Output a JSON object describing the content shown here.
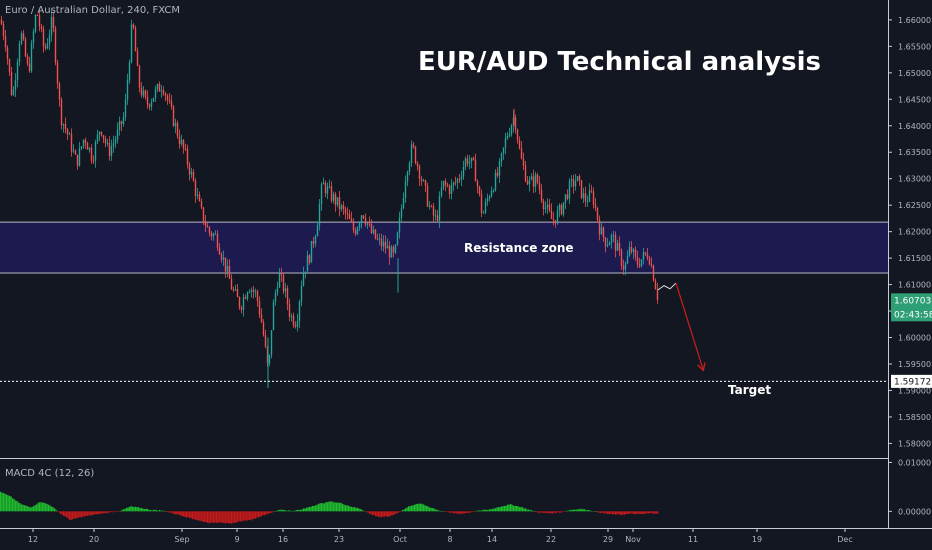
{
  "header": {
    "symbol_label": "Euro / Australian Dollar, 240, FXCM"
  },
  "annotations": {
    "title": "EUR/AUD Technical analysis",
    "resistance_label": "Resistance zone",
    "target_label": "Target"
  },
  "price_tags": {
    "current_price": "1.60703",
    "countdown": "02:43:58",
    "target_price": "1.59172"
  },
  "indicator": {
    "label": "MACD 4C (12, 26)",
    "ticks": [
      "0.01000",
      "0.00000"
    ]
  },
  "colors": {
    "background": "#131722",
    "up": "#26a69a",
    "down": "#ef5350",
    "zone_fill": "#1c1a4e",
    "macd_up": "#1fbe2f",
    "macd_down": "#c81a1a",
    "price_tag": "#2e9e74",
    "target_arrow": "#c11d1d"
  },
  "chart_data": {
    "type": "candlestick",
    "y_ticks": [
      "1.66000",
      "1.65500",
      "1.65000",
      "1.64500",
      "1.64000",
      "1.63500",
      "1.63000",
      "1.62500",
      "1.62000",
      "1.61500",
      "1.61000",
      "1.60500",
      "1.60000",
      "1.59500",
      "1.59000",
      "1.58500",
      "1.58000"
    ],
    "y_range": [
      1.578,
      1.663
    ],
    "x_ticks": [
      "12",
      "20",
      "Sep",
      "9",
      "16",
      "23",
      "Oct",
      "8",
      "14",
      "22",
      "29",
      "Nov",
      "11",
      "19",
      "Dec"
    ],
    "resistance_zone": [
      1.6122,
      1.6218
    ],
    "target_level": 1.59172,
    "last_price": 1.60703,
    "price_path": [
      [
        0,
        1.66
      ],
      [
        5,
        1.656
      ],
      [
        12,
        1.645
      ],
      [
        20,
        1.658
      ],
      [
        28,
        1.65
      ],
      [
        36,
        1.662
      ],
      [
        44,
        1.654
      ],
      [
        52,
        1.66
      ],
      [
        60,
        1.642
      ],
      [
        68,
        1.638
      ],
      [
        76,
        1.633
      ],
      [
        84,
        1.638
      ],
      [
        92,
        1.634
      ],
      [
        100,
        1.64
      ],
      [
        108,
        1.635
      ],
      [
        116,
        1.638
      ],
      [
        124,
        1.642
      ],
      [
        132,
        1.66
      ],
      [
        138,
        1.648
      ],
      [
        146,
        1.644
      ],
      [
        154,
        1.646
      ],
      [
        162,
        1.648
      ],
      [
        170,
        1.643
      ],
      [
        178,
        1.638
      ],
      [
        184,
        1.635
      ],
      [
        192,
        1.63
      ],
      [
        200,
        1.624
      ],
      [
        208,
        1.62
      ],
      [
        216,
        1.619
      ],
      [
        224,
        1.614
      ],
      [
        232,
        1.609
      ],
      [
        240,
        1.606
      ],
      [
        248,
        1.61
      ],
      [
        256,
        1.608
      ],
      [
        262,
        1.602
      ],
      [
        268,
        1.593
      ],
      [
        272,
        1.605
      ],
      [
        278,
        1.612
      ],
      [
        284,
        1.609
      ],
      [
        290,
        1.604
      ],
      [
        296,
        1.603
      ],
      [
        302,
        1.612
      ],
      [
        310,
        1.616
      ],
      [
        316,
        1.621
      ],
      [
        322,
        1.629
      ],
      [
        330,
        1.627
      ],
      [
        338,
        1.625
      ],
      [
        346,
        1.623
      ],
      [
        354,
        1.62
      ],
      [
        362,
        1.624
      ],
      [
        370,
        1.62
      ],
      [
        378,
        1.618
      ],
      [
        386,
        1.617
      ],
      [
        394,
        1.615
      ],
      [
        400,
        1.623
      ],
      [
        406,
        1.632
      ],
      [
        412,
        1.636
      ],
      [
        418,
        1.632
      ],
      [
        424,
        1.628
      ],
      [
        430,
        1.624
      ],
      [
        436,
        1.622
      ],
      [
        442,
        1.629
      ],
      [
        450,
        1.628
      ],
      [
        458,
        1.63
      ],
      [
        466,
        1.634
      ],
      [
        474,
        1.632
      ],
      [
        482,
        1.623
      ],
      [
        490,
        1.628
      ],
      [
        498,
        1.631
      ],
      [
        506,
        1.638
      ],
      [
        514,
        1.642
      ],
      [
        520,
        1.634
      ],
      [
        528,
        1.629
      ],
      [
        536,
        1.63
      ],
      [
        544,
        1.625
      ],
      [
        552,
        1.622
      ],
      [
        560,
        1.624
      ],
      [
        568,
        1.628
      ],
      [
        576,
        1.63
      ],
      [
        584,
        1.626
      ],
      [
        592,
        1.627
      ],
      [
        600,
        1.62
      ],
      [
        606,
        1.618
      ],
      [
        612,
        1.619
      ],
      [
        618,
        1.616
      ],
      [
        624,
        1.613
      ],
      [
        630,
        1.617
      ],
      [
        636,
        1.614
      ],
      [
        642,
        1.615
      ],
      [
        648,
        1.616
      ],
      [
        654,
        1.611
      ],
      [
        658,
        1.607
      ]
    ],
    "macd_path": [
      [
        0,
        0.004
      ],
      [
        10,
        0.003
      ],
      [
        20,
        0.0015
      ],
      [
        30,
        0.0008
      ],
      [
        40,
        0.002
      ],
      [
        50,
        0.0012
      ],
      [
        60,
        -0.0005
      ],
      [
        70,
        -0.0018
      ],
      [
        80,
        -0.0012
      ],
      [
        90,
        -0.0008
      ],
      [
        100,
        -0.0005
      ],
      [
        110,
        -0.0002
      ],
      [
        120,
        0.0001
      ],
      [
        130,
        0.001
      ],
      [
        140,
        0.0007
      ],
      [
        150,
        0.0003
      ],
      [
        160,
        0.0002
      ],
      [
        170,
        -0.0003
      ],
      [
        180,
        -0.0008
      ],
      [
        190,
        -0.0014
      ],
      [
        200,
        -0.002
      ],
      [
        210,
        -0.0024
      ],
      [
        220,
        -0.0022
      ],
      [
        230,
        -0.0026
      ],
      [
        240,
        -0.002
      ],
      [
        250,
        -0.0018
      ],
      [
        260,
        -0.001
      ],
      [
        270,
        -0.0003
      ],
      [
        280,
        0.0004
      ],
      [
        290,
        0.0001
      ],
      [
        300,
        0.0003
      ],
      [
        310,
        0.001
      ],
      [
        320,
        0.0016
      ],
      [
        330,
        0.002
      ],
      [
        340,
        0.0017
      ],
      [
        350,
        0.001
      ],
      [
        360,
        0.0005
      ],
      [
        370,
        -0.0006
      ],
      [
        380,
        -0.0012
      ],
      [
        390,
        -0.001
      ],
      [
        400,
        0.0
      ],
      [
        410,
        0.0012
      ],
      [
        420,
        0.0016
      ],
      [
        430,
        0.0008
      ],
      [
        440,
        0.0001
      ],
      [
        450,
        -0.0003
      ],
      [
        460,
        -0.0005
      ],
      [
        470,
        -0.0002
      ],
      [
        480,
        0.0002
      ],
      [
        490,
        0.0004
      ],
      [
        500,
        0.001
      ],
      [
        510,
        0.0014
      ],
      [
        520,
        0.0009
      ],
      [
        530,
        0.0002
      ],
      [
        540,
        -0.0003
      ],
      [
        550,
        -0.0004
      ],
      [
        560,
        -0.0002
      ],
      [
        570,
        0.0003
      ],
      [
        580,
        0.0005
      ],
      [
        590,
        0.0002
      ],
      [
        600,
        -0.0003
      ],
      [
        610,
        -0.0006
      ],
      [
        620,
        -0.0007
      ],
      [
        630,
        -0.0005
      ],
      [
        640,
        -0.0006
      ],
      [
        650,
        -0.0004
      ],
      [
        658,
        -0.0004
      ]
    ],
    "macd_range": [
      -0.003,
      0.0105
    ],
    "projection": {
      "scribble": [
        [
          658,
          1.609
        ],
        [
          664,
          1.6098
        ],
        [
          670,
          1.6092
        ],
        [
          676,
          1.6103
        ]
      ],
      "arrow": [
        [
          676,
          1.6103
        ],
        [
          703,
          1.594
        ]
      ]
    }
  }
}
